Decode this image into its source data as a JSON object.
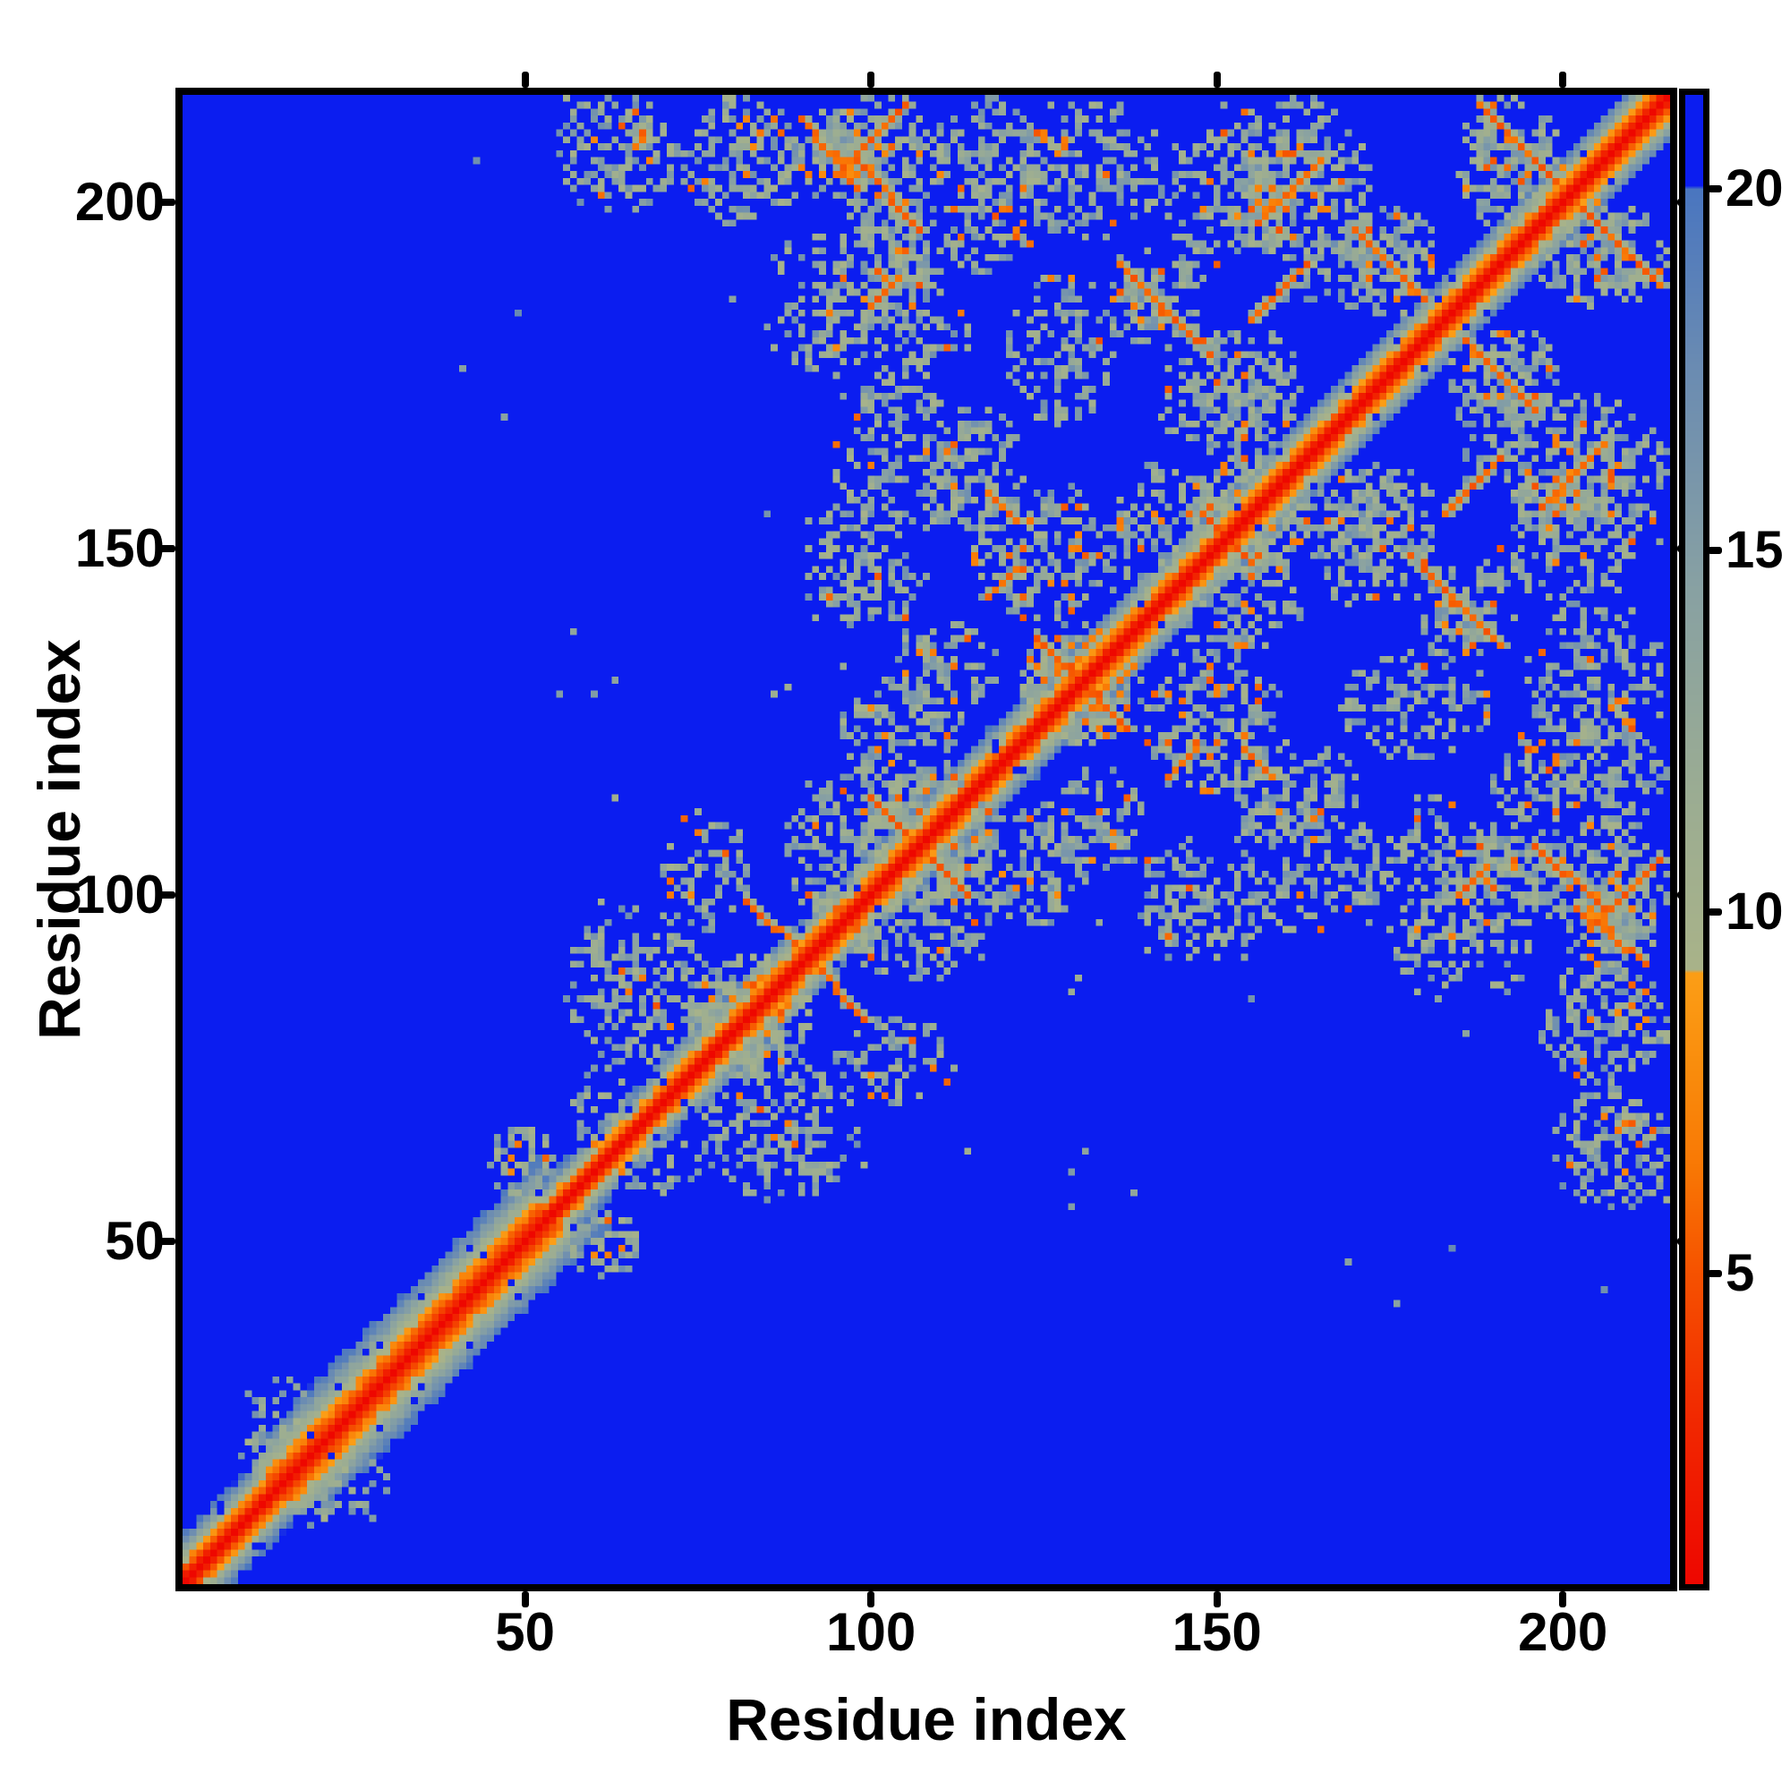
{
  "figure": {
    "background": "#ffffff"
  },
  "chart_data": {
    "type": "heatmap",
    "title": "",
    "xlabel": "Residue index",
    "ylabel": "Residue index",
    "x_ticks": [
      50,
      100,
      150,
      200
    ],
    "y_ticks": [
      50,
      100,
      150,
      200
    ],
    "x_range": [
      0.5,
      215.5
    ],
    "y_range": [
      0.5,
      215.5
    ],
    "n_residues": 215,
    "grid": false,
    "legend": "colorbar-right",
    "colorbar": {
      "ticks": [
        5,
        10,
        15,
        20
      ],
      "vmin": 0.7,
      "vmax": 21.3
    },
    "colors": {
      "background_blue": "#0b1df0",
      "diagonal_red": "#ee0700",
      "orange": "#f97905",
      "sage": "#a9b389",
      "slate": "#4a76c0",
      "axis": "#000000"
    },
    "colormap_stops": [
      [
        0.7,
        "#ee0700"
      ],
      [
        3.0,
        "#f22900"
      ],
      [
        5.0,
        "#f65200"
      ],
      [
        6.5,
        "#f97905"
      ],
      [
        8.0,
        "#fa8f0e"
      ],
      [
        9.15,
        "#fc9e16"
      ],
      [
        9.2,
        "#a9b389"
      ],
      [
        11.5,
        "#9cad92"
      ],
      [
        14.5,
        "#88a1a3"
      ],
      [
        17.5,
        "#6b8cb2"
      ],
      [
        20.0,
        "#4a76c0"
      ],
      [
        20.05,
        "#0b1df0"
      ],
      [
        23.0,
        "#0b1df0"
      ]
    ],
    "background_value": 22,
    "diagonal_band": {
      "intercept": 2.4,
      "regions": [
        [
          1,
          12,
          2.9
        ],
        [
          12,
          52,
          2.0
        ],
        [
          52,
          68,
          3.6
        ],
        [
          68,
          215,
          3.1
        ]
      ],
      "noise": 2.2,
      "hole_chance": 0.04,
      "kmax": 14
    },
    "contact_clusters": [
      [
        54,
        72,
        199,
        215,
        0.5,
        0.05
      ],
      [
        73,
        90,
        197,
        215,
        0.55,
        0.07
      ],
      [
        90,
        99,
        200,
        213,
        0.6,
        0.12
      ],
      [
        97,
        108,
        192,
        206,
        0.55,
        0.1
      ],
      [
        86,
        112,
        187,
        196,
        0.4,
        0.03
      ],
      [
        85,
        115,
        175,
        188,
        0.45,
        0.04
      ],
      [
        99,
        109,
        167,
        177,
        0.35,
        0.03
      ],
      [
        108,
        125,
        190,
        215,
        0.5,
        0.07
      ],
      [
        120,
        142,
        195,
        215,
        0.45,
        0.06
      ],
      [
        150,
        172,
        192,
        215,
        0.55,
        0.1
      ],
      [
        168,
        182,
        184,
        199,
        0.55,
        0.12
      ],
      [
        185,
        200,
        196,
        215,
        0.6,
        0.1
      ],
      [
        56,
        76,
        76,
        98,
        0.42,
        0.03
      ],
      [
        74,
        91,
        74,
        91,
        0.55,
        0.12
      ],
      [
        88,
        100,
        95,
        118,
        0.5,
        0.06
      ],
      [
        98,
        118,
        98,
        118,
        0.5,
        0.06
      ],
      [
        96,
        112,
        114,
        132,
        0.45,
        0.06
      ],
      [
        122,
        139,
        122,
        139,
        0.5,
        0.08
      ],
      [
        133,
        150,
        140,
        162,
        0.45,
        0.06
      ],
      [
        146,
        163,
        146,
        163,
        0.5,
        0.08
      ],
      [
        145,
        162,
        165,
        182,
        0.4,
        0.04
      ],
      [
        142,
        162,
        163,
        180,
        0.4,
        0.04
      ],
      [
        135,
        148,
        178,
        194,
        0.5,
        0.1
      ],
      [
        94,
        110,
        183,
        194,
        0.4,
        0.08
      ],
      [
        94,
        108,
        203,
        215,
        0.6,
        0.15
      ],
      [
        94,
        108,
        139,
        150,
        0.4,
        0.05
      ],
      [
        95,
        115,
        152,
        172,
        0.38,
        0.04
      ],
      [
        57,
        66,
        63,
        76,
        0.35,
        0.03
      ],
      [
        45,
        54,
        55,
        67,
        0.35,
        0.03
      ],
      [
        8,
        20,
        14,
        30,
        0.4,
        0.04
      ],
      [
        70,
        82,
        95,
        112,
        0.42,
        0.05
      ],
      [
        120,
        135,
        168,
        190,
        0.45,
        0.05
      ],
      [
        108,
        122,
        152,
        170,
        0.42,
        0.05
      ],
      [
        90,
        102,
        138,
        158,
        0.35,
        0.03
      ],
      [
        103,
        118,
        125,
        140,
        0.45,
        0.06
      ],
      [
        142,
        161,
        191,
        214,
        0.4,
        0.07
      ],
      [
        115,
        134,
        140,
        160,
        0.45,
        0.09
      ],
      [
        160,
        175,
        185,
        200,
        0.4,
        0.05
      ]
    ],
    "orange_streaks": [
      [
        90,
        212,
        98,
        202
      ],
      [
        98,
        206,
        107,
        196
      ],
      [
        95,
        204,
        105,
        214
      ],
      [
        82,
        99,
        91,
        91
      ],
      [
        100,
        114,
        113,
        101
      ],
      [
        124,
        137,
        136,
        125
      ],
      [
        148,
        155,
        155,
        148
      ],
      [
        136,
        191,
        147,
        180
      ],
      [
        170,
        196,
        180,
        186
      ],
      [
        188,
        214,
        201,
        201
      ],
      [
        156,
        197,
        165,
        206
      ],
      [
        117,
        143,
        121,
        147
      ],
      [
        117,
        158,
        121,
        154
      ],
      [
        155,
        183,
        163,
        191
      ],
      [
        100,
        185,
        104,
        189
      ],
      [
        66,
        208,
        67,
        210
      ]
    ],
    "isolated_dots": [
      [
        63,
        114
      ],
      [
        86,
        129
      ]
    ],
    "speckle": {
      "prob": 0.005,
      "min_separation": 10
    },
    "seed": 7
  }
}
